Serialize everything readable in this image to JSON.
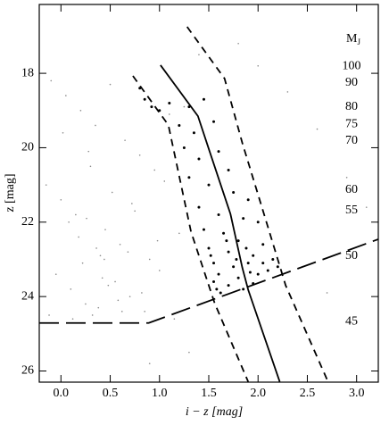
{
  "chart_data": {
    "type": "scatter",
    "x_label": "i − z [mag]",
    "y_label": "z [mag]",
    "xlim": [
      -0.22,
      3.22
    ],
    "ylim": [
      26.3,
      16.15
    ],
    "xticks": [
      {
        "value": 0,
        "label": "0.0"
      },
      0.5,
      {
        "value": 1,
        "label": "1.0"
      },
      1.5,
      {
        "value": 2,
        "label": "2.0"
      },
      2.5,
      {
        "value": 3,
        "label": "3.0"
      }
    ],
    "yticks": [
      18,
      20,
      22,
      24,
      26
    ],
    "mass_title": {
      "main": "M",
      "sub": "J"
    },
    "mass_labels": [
      {
        "mass": 100,
        "z": 17.81
      },
      {
        "mass": 90,
        "z": 18.26
      },
      {
        "mass": 80,
        "z": 18.91
      },
      {
        "mass": 75,
        "z": 19.37
      },
      {
        "mass": 70,
        "z": 19.82
      },
      {
        "mass": 60,
        "z": 21.14
      },
      {
        "mass": 55,
        "z": 21.69
      },
      {
        "mass": 50,
        "z": 22.91
      },
      {
        "mass": 45,
        "z": 24.68
      }
    ],
    "series": [
      {
        "kind": "points",
        "color": "#8a8a8a",
        "size": 0.8,
        "x": [
          -0.1,
          0.05,
          0.2,
          0.35,
          0.5,
          0.65,
          0.8,
          0.95,
          1.1,
          1.25,
          -0.15,
          0.0,
          0.15,
          0.3,
          0.45,
          0.6,
          0.75,
          0.9,
          1.05,
          1.2,
          -0.05,
          0.1,
          0.25,
          0.4,
          0.55,
          0.7,
          0.85,
          1.0,
          1.15,
          -0.12,
          0.08,
          0.22,
          0.38,
          0.52,
          0.68,
          0.82,
          0.98,
          0.12,
          0.28,
          0.42,
          0.58,
          0.72,
          0.18,
          0.32,
          0.48,
          0.62,
          0.02,
          0.26,
          0.44,
          0.36,
          1.4,
          1.8,
          2.3,
          2.6,
          2.9,
          3.1,
          2.0,
          2.7,
          1.3,
          0.9
        ],
        "y": [
          18.2,
          18.6,
          19.0,
          19.4,
          18.3,
          19.8,
          20.2,
          20.6,
          19.1,
          18.9,
          21.0,
          21.4,
          21.8,
          20.5,
          22.2,
          22.6,
          21.7,
          23.0,
          20.9,
          22.3,
          23.4,
          23.8,
          24.2,
          22.9,
          23.6,
          24.0,
          24.4,
          23.3,
          24.6,
          24.5,
          22.0,
          23.1,
          24.3,
          21.2,
          22.8,
          23.9,
          22.5,
          24.6,
          20.1,
          23.5,
          24.1,
          21.5,
          22.4,
          24.5,
          23.7,
          24.4,
          19.6,
          21.9,
          23.0,
          22.7,
          17.5,
          17.2,
          18.5,
          19.5,
          20.8,
          21.6,
          17.8,
          23.9,
          25.5,
          25.8
        ]
      },
      {
        "kind": "points",
        "color": "#000000",
        "size": 1.5,
        "x": [
          0.8,
          0.85,
          0.92,
          1.0,
          1.1,
          1.3,
          1.45,
          1.2,
          1.35,
          1.55,
          1.25,
          1.4,
          1.6,
          1.7,
          1.3,
          1.5,
          1.75,
          1.9,
          1.4,
          1.6,
          1.85,
          2.0,
          1.45,
          1.65,
          1.8,
          2.05,
          1.5,
          1.7,
          1.95,
          2.15,
          1.55,
          1.75,
          1.9,
          2.1,
          1.6,
          1.8,
          2.0,
          2.2,
          1.55,
          1.7,
          1.85,
          1.62,
          1.95,
          1.68,
          1.88,
          1.58,
          2.05,
          1.78,
          1.52,
          1.92
        ],
        "y": [
          18.4,
          18.7,
          18.9,
          19.0,
          18.8,
          18.9,
          18.7,
          19.4,
          19.6,
          19.3,
          20.0,
          20.3,
          20.1,
          20.6,
          20.8,
          21.0,
          21.2,
          21.4,
          21.6,
          21.8,
          21.9,
          22.0,
          22.2,
          22.3,
          22.5,
          22.6,
          22.7,
          22.8,
          22.9,
          23.0,
          23.1,
          23.2,
          23.1,
          23.3,
          23.4,
          23.5,
          23.4,
          23.2,
          23.6,
          23.7,
          23.8,
          23.9,
          23.65,
          22.5,
          22.7,
          23.8,
          23.1,
          23.0,
          22.9,
          23.35
        ]
      },
      {
        "kind": "line",
        "color": "#000000",
        "dash": "none",
        "x": [
          1.01,
          1.39,
          1.51,
          1.72,
          1.84,
          1.9,
          2.22
        ],
        "y": [
          17.78,
          19.15,
          20.11,
          21.78,
          23.22,
          23.82,
          26.29
        ]
      },
      {
        "kind": "line",
        "color": "#000000",
        "dash": "8 6",
        "x": [
          0.73,
          1.09,
          1.32,
          1.56,
          1.9
        ],
        "y": [
          18.07,
          19.39,
          22.26,
          24.18,
          26.29
        ]
      },
      {
        "kind": "line",
        "color": "#000000",
        "dash": "8 6",
        "x": [
          1.28,
          1.66,
          1.84,
          2.06,
          2.28,
          2.71
        ],
        "y": [
          16.75,
          18.14,
          19.87,
          21.78,
          23.7,
          26.29
        ]
      },
      {
        "kind": "line",
        "color": "#000000",
        "dash": "22 8",
        "x": [
          -0.22,
          0.89,
          3.22
        ],
        "y": [
          24.71,
          24.71,
          22.46
        ]
      }
    ]
  }
}
